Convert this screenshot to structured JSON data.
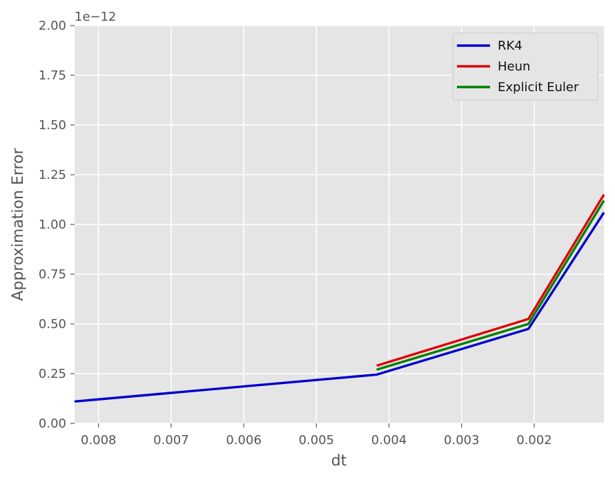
{
  "chart_data": {
    "type": "line",
    "title": "",
    "xlabel": "dt",
    "ylabel": "Approximation Error",
    "y_offset_label": "1e−12",
    "xlim": [
      0.00833,
      0.00104
    ],
    "x_inverted": true,
    "ylim": [
      0,
      2.0
    ],
    "y_scale_factor": 1e-12,
    "grid": true,
    "background": "#e5e5e5",
    "x_ticks": [
      0.008,
      0.007,
      0.006,
      0.005,
      0.004,
      0.003,
      0.002
    ],
    "x_tick_labels": [
      "0.008",
      "0.007",
      "0.006",
      "0.005",
      "0.004",
      "0.003",
      "0.002"
    ],
    "y_ticks": [
      0,
      0.25,
      0.5,
      0.75,
      1.0,
      1.25,
      1.5,
      1.75,
      2.0
    ],
    "y_tick_labels": [
      "0.00",
      "0.25",
      "0.50",
      "0.75",
      "1.00",
      "1.25",
      "1.50",
      "1.75",
      "2.00"
    ],
    "legend_position": "top-right",
    "series": [
      {
        "name": "RK4",
        "color": "#0000cc",
        "x": [
          0.00833,
          0.00417,
          0.00208,
          0.00104
        ],
        "y": [
          0.11,
          0.245,
          0.475,
          1.06
        ]
      },
      {
        "name": "Heun",
        "color": "#dd0000",
        "x": [
          0.00417,
          0.00208,
          0.00104
        ],
        "y": [
          0.29,
          0.525,
          1.15
        ]
      },
      {
        "name": "Explicit Euler",
        "color": "#008000",
        "x": [
          0.00417,
          0.00208,
          0.00104
        ],
        "y": [
          0.27,
          0.5,
          1.12
        ]
      }
    ]
  }
}
